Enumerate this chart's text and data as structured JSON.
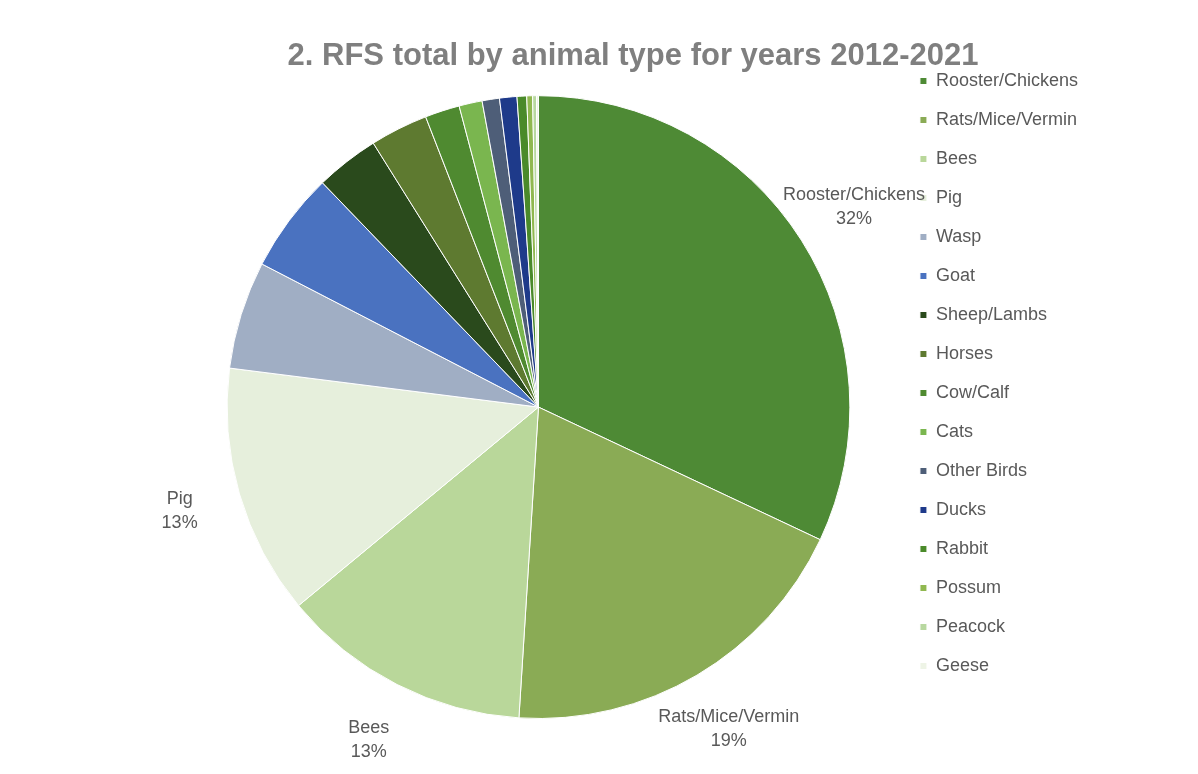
{
  "chart_data": {
    "type": "pie",
    "title": "2. RFS total by animal type for years 2012-2021",
    "categories": [
      "Rooster/Chickens",
      "Rats/Mice/Vermin",
      "Bees",
      "Pig",
      "Wasp",
      "Goat",
      "Sheep/Lambs",
      "Horses",
      "Cow/Calf",
      "Cats",
      "Other Birds",
      "Ducks",
      "Rabbit",
      "Possum",
      "Peacock",
      "Geese"
    ],
    "values": [
      32,
      19,
      13,
      13,
      5.6,
      5.2,
      3.3,
      3,
      1.8,
      1.2,
      0.9,
      0.9,
      0.5,
      0.3,
      0.2,
      0.1
    ],
    "colors": [
      "#4e8a35",
      "#8aab55",
      "#b9d79a",
      "#e6efdc",
      "#a0aec4",
      "#4a72c0",
      "#2a4a1c",
      "#5e7a30",
      "#4f8a30",
      "#7ab64f",
      "#4e5e78",
      "#1e3a8a",
      "#4a8a2a",
      "#90b850",
      "#b8d8a0",
      "#eef4e6"
    ],
    "value_labels": [
      "32%",
      "19%",
      "13%",
      "13%",
      null,
      null,
      null,
      null,
      null,
      null,
      null,
      null,
      null,
      null,
      null,
      null
    ],
    "legend": "right"
  }
}
